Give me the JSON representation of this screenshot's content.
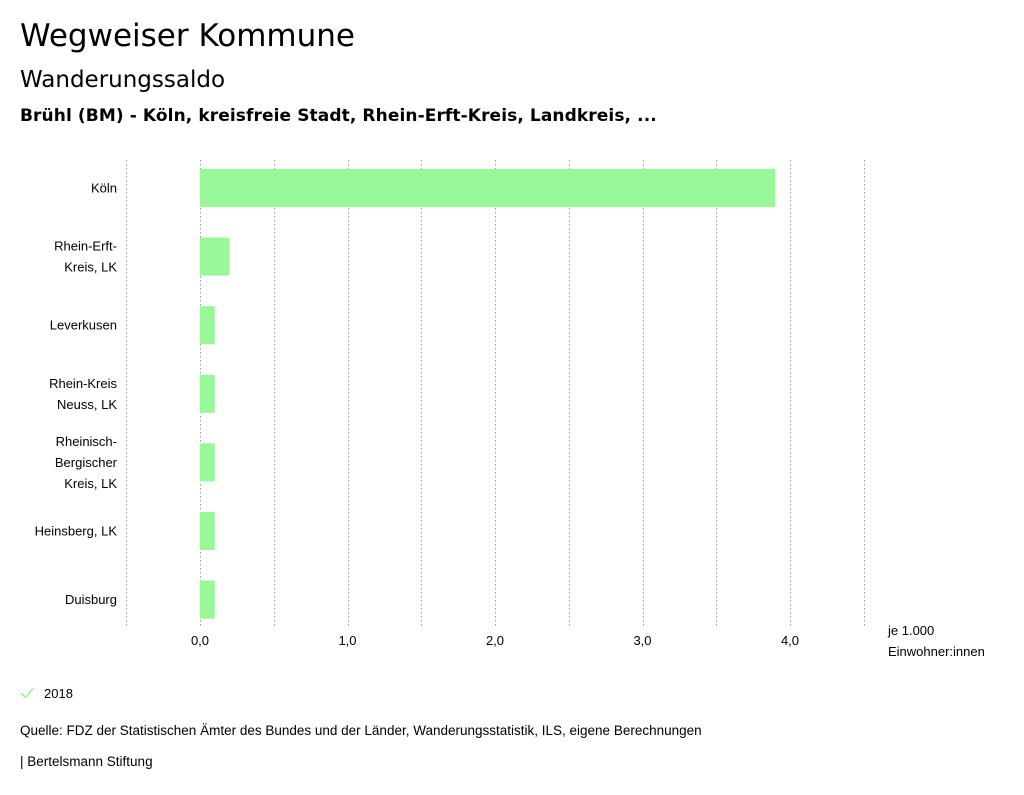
{
  "header": {
    "title": "Wegweiser Kommune",
    "subtitle": "Wanderungssaldo",
    "regions": "Brühl (BM) - Köln, kreisfreie Stadt, Rhein-Erft-Kreis, Landkreis, ..."
  },
  "chart_data": {
    "type": "bar",
    "orientation": "horizontal",
    "categories": [
      [
        "Köln"
      ],
      [
        "Rhein-Erft-",
        "Kreis, LK"
      ],
      [
        "Leverkusen"
      ],
      [
        "Rhein-Kreis",
        "Neuss, LK"
      ],
      [
        "Rheinisch-",
        "Bergischer",
        "Kreis, LK"
      ],
      [
        "Heinsberg, LK"
      ],
      [
        "Duisburg"
      ]
    ],
    "series": [
      {
        "name": "2018",
        "values": [
          3.9,
          0.2,
          0.1,
          0.1,
          0.1,
          0.1,
          0.1
        ],
        "color": "#98f797"
      }
    ],
    "xlim": [
      -0.5,
      4.5
    ],
    "xticks": [
      0,
      1,
      2,
      3,
      4
    ],
    "xtick_labels": [
      "0,0",
      "1,0",
      "2,0",
      "3,0",
      "4,0"
    ],
    "xlabel": [
      "je 1.000",
      "Einwohner:innen"
    ],
    "grid": true
  },
  "legend": {
    "label": "2018",
    "color": "#98f797",
    "icon": "check-icon"
  },
  "footer": {
    "source": "Quelle: FDZ der Statistischen Ämter des Bundes und der Länder, Wanderungsstatistik, ILS, eigene Berechnungen",
    "publisher": "| Bertelsmann Stiftung"
  }
}
